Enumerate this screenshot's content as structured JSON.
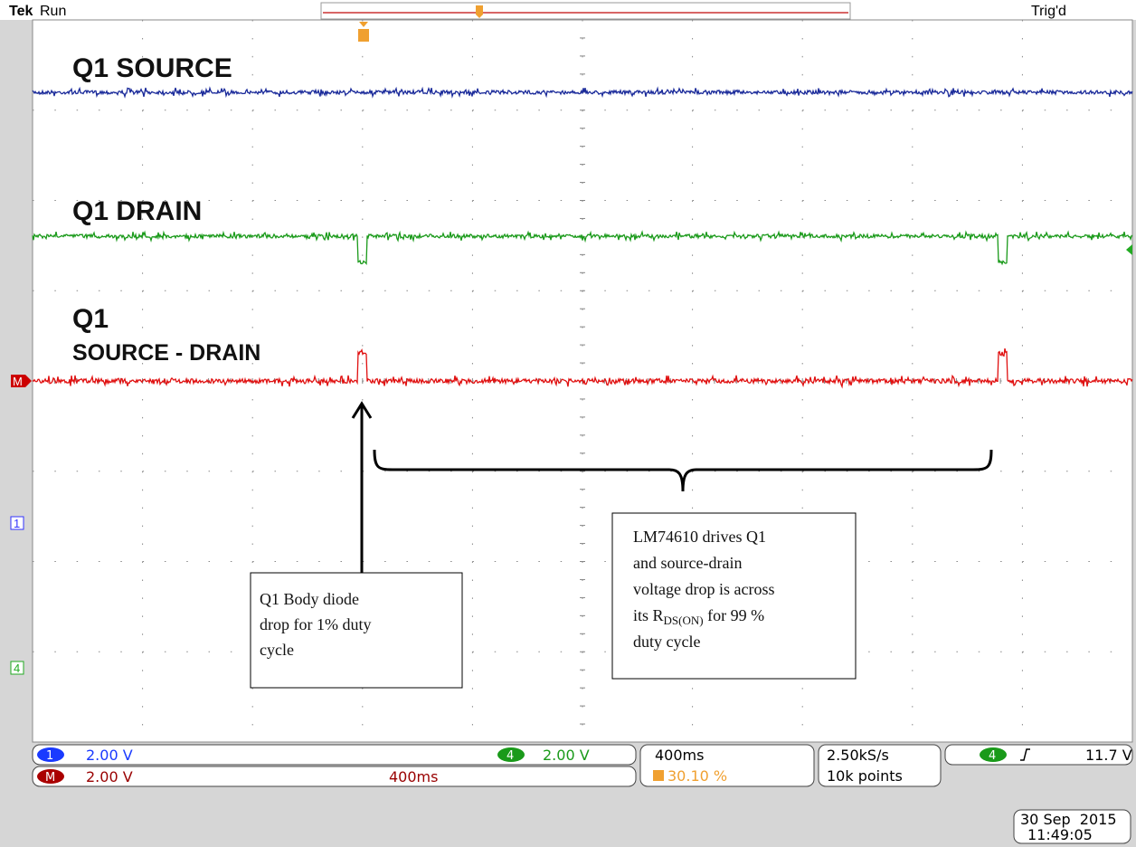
{
  "header": {
    "brand": "Tek",
    "status": "Run",
    "trigger_status": "Trig'd"
  },
  "traces": {
    "source": "Q1 SOURCE",
    "drain": "Q1 DRAIN",
    "diff_line1": "Q1",
    "diff_line2": "SOURCE - DRAIN"
  },
  "markers": {
    "math": "M",
    "ch1": "1",
    "ch4": "4"
  },
  "annotations": [
    {
      "lines": [
        "Q1 Body diode",
        "drop for 1% duty",
        "cycle"
      ]
    },
    {
      "lines": [
        "LM74610 drives Q1",
        "and source-drain",
        "voltage drop is across"
      ],
      "rich_line": {
        "pre": "its R",
        "sub": "DS(ON)",
        "post": " for 99 %"
      },
      "last_line": "duty cycle"
    }
  ],
  "status_bar": {
    "ch1": {
      "id": "1",
      "scale": "2.00 V"
    },
    "ch4": {
      "id": "4",
      "scale": "2.00 V"
    },
    "math": {
      "id": "M",
      "scale": "2.00 V",
      "time": "400ms"
    },
    "timebase": "400ms",
    "trigger_position": "30.10 %",
    "sample_rate": "2.50kS/s",
    "record_length": "10k points",
    "trigger": {
      "source": "4",
      "level": "11.7 V"
    },
    "date": "30 Sep  2015",
    "time": "11:49:05"
  }
}
